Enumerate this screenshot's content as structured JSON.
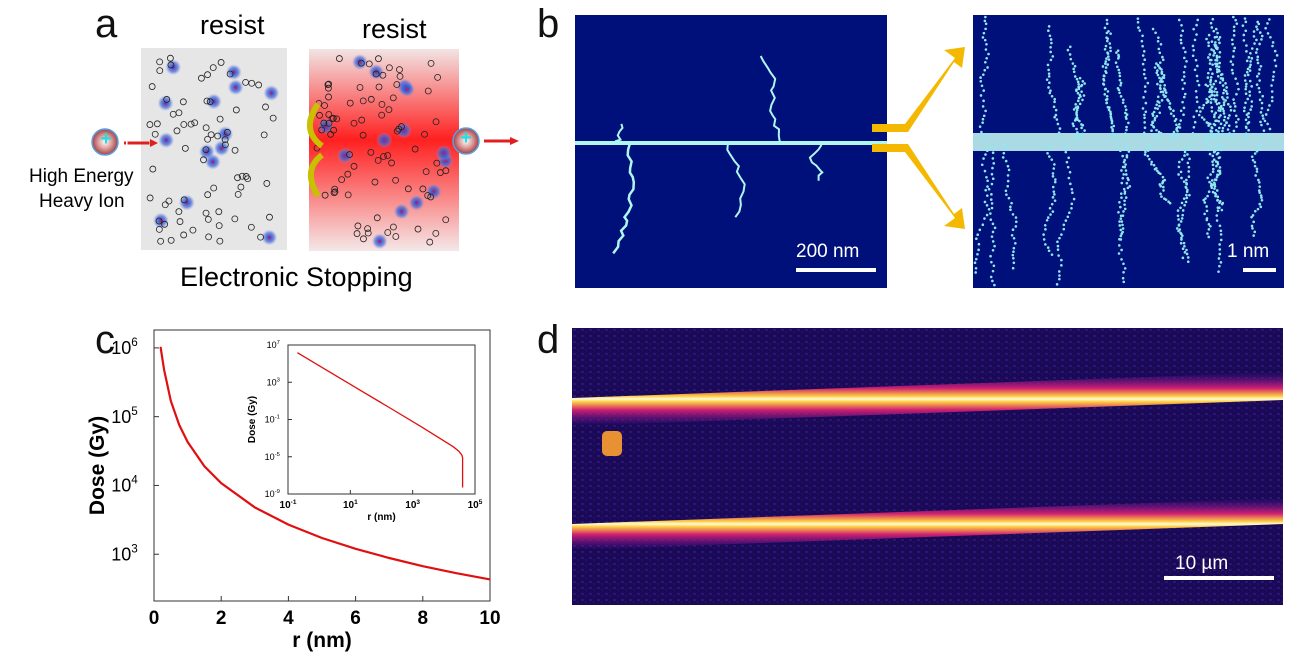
{
  "panels": {
    "a": {
      "label": "a",
      "resist_left": "resist",
      "resist_right": "resist",
      "ion_label_line1": "High Energy",
      "ion_label_line2": "Heavy Ion",
      "caption": "Electronic Stopping",
      "ion_symbol": "+"
    },
    "b": {
      "label": "b",
      "scale_left": "200 nm",
      "scale_right": "1 nm",
      "colors": {
        "background": "#00107a",
        "track": "#aef6ee",
        "arrow": "#f5b800"
      }
    },
    "c": {
      "label": "c"
    },
    "d": {
      "label": "d",
      "scale": "10 µm",
      "colors": {
        "background": "#1a0a55",
        "line": "#fff8c0"
      }
    }
  },
  "chart_data": [
    {
      "type": "line",
      "name": "main",
      "xlabel": "r (nm)",
      "ylabel": "Dose (Gy)",
      "xlim": [
        0,
        10
      ],
      "ylim_log10": [
        2.32,
        6.26
      ],
      "yscale": "log",
      "xticks": [
        "0",
        "2",
        "4",
        "6",
        "8",
        "10"
      ],
      "yticks": [
        {
          "base": "10",
          "exp": "6"
        },
        {
          "base": "10",
          "exp": "5"
        },
        {
          "base": "10",
          "exp": "4"
        },
        {
          "base": "10",
          "exp": "3"
        }
      ],
      "series": [
        {
          "name": "dose",
          "color": "#e01010",
          "x": [
            0.17,
            0.2,
            0.3,
            0.5,
            0.75,
            1,
            1.5,
            2,
            3,
            4,
            5,
            6,
            7,
            8,
            9,
            10
          ],
          "y": [
            1000000,
            1000000,
            480000,
            170000,
            76000,
            43000,
            19000,
            10800,
            4800,
            2700,
            1720,
            1200,
            880,
            670,
            530,
            430
          ]
        }
      ]
    },
    {
      "type": "line",
      "name": "inset",
      "xlabel": "r (nm)",
      "ylabel": "Dose (Gy)",
      "xscale": "log",
      "yscale": "log",
      "xlim_log10": [
        -1,
        5
      ],
      "ylim_log10": [
        -9,
        7
      ],
      "xticks": [
        {
          "base": "10",
          "exp": "-1"
        },
        {
          "base": "10",
          "exp": "1"
        },
        {
          "base": "10",
          "exp": "3"
        },
        {
          "base": "10",
          "exp": "5"
        }
      ],
      "yticks": [
        {
          "base": "10",
          "exp": "7"
        },
        {
          "base": "10",
          "exp": "3"
        },
        {
          "base": "10",
          "exp": "-1"
        },
        {
          "base": "10",
          "exp": "-5"
        },
        {
          "base": "10",
          "exp": "-9"
        }
      ],
      "series": [
        {
          "name": "dose",
          "color": "#e01010",
          "x": [
            0.2,
            2,
            20,
            200,
            2000,
            20000,
            30000,
            38000,
            40000,
            40000
          ],
          "y": [
            1500000,
            15000,
            150,
            1.5,
            0.015,
            0.00012,
            4e-05,
            1.5e-05,
            8e-06,
            5e-09
          ]
        }
      ]
    }
  ]
}
